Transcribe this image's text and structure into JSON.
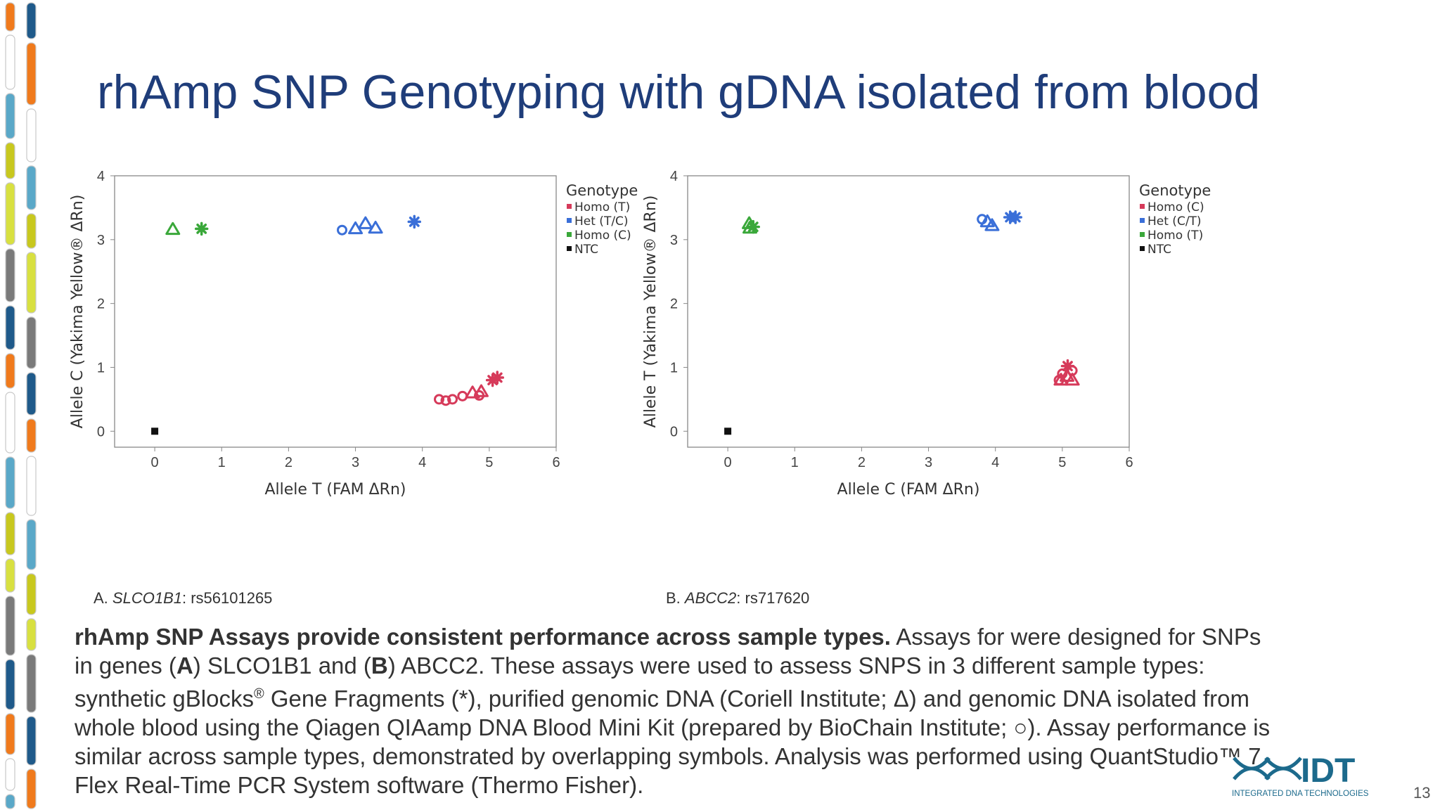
{
  "slide": {
    "title": "rhAmp SNP Genotyping with gDNA isolated from blood",
    "page_number": "13"
  },
  "captions": [
    {
      "letter": "A.",
      "gene": "SLCO1B1",
      "snp": ": rs56101265"
    },
    {
      "letter": "B.",
      "gene": "ABCC2",
      "snp": ": rs717620"
    }
  ],
  "description": {
    "bold": "rhAmp SNP Assays provide consistent performance across sample types.",
    "p1": " Assays for were designed for SNPs in genes (",
    "A": "A",
    "p2": ") SLCO1B1 and (",
    "B": "B",
    "p3": ") ABCC2. These assays were used to assess SNPS in 3 different sample types: synthetic gBlocks",
    "reg": "®",
    "p4": " Gene Fragments (*), purified genomic DNA (Coriell Institute; Δ) and genomic DNA isolated from whole blood using the Qiagen QIAamp DNA Blood Mini Kit (prepared by BioChain Institute; ○). Assay performance is similar across sample types, demonstrated by overlapping symbols. Analysis was performed using QuantStudio™ 7 Flex Real-Time PCR System software (Thermo Fisher)."
  },
  "logo": {
    "text": "IDT",
    "subtext": "INTEGRATED DNA TECHNOLOGIES"
  },
  "colors": {
    "title": "#1f3d7a",
    "red": "#d63a5a",
    "blue": "#3a6fd8",
    "green": "#3aa83a",
    "black": "#111111",
    "logo": "#1c6a8c"
  },
  "chart_data": [
    {
      "type": "scatter",
      "xlabel": "Allele T (FAM ΔRn)",
      "ylabel": "Allele C (Yakima Yellow® ΔRn)",
      "xlim": [
        -0.6,
        6
      ],
      "ylim": [
        -0.25,
        4
      ],
      "xticks": [
        0,
        1,
        2,
        3,
        4,
        5,
        6
      ],
      "yticks": [
        0,
        1,
        2,
        3,
        4
      ],
      "legend_title": "Genotype",
      "legend_position": "top-right",
      "legend": [
        {
          "label": "Homo (T)",
          "color": "#d63a5a"
        },
        {
          "label": "Het (T/C)",
          "color": "#3a6fd8"
        },
        {
          "label": "Homo (C)",
          "color": "#3aa83a"
        },
        {
          "label": "NTC",
          "color": "#111111"
        }
      ],
      "points": [
        {
          "x": 0.27,
          "y": 3.16,
          "shape": "triangle",
          "color": "#3aa83a"
        },
        {
          "x": 0.7,
          "y": 3.17,
          "shape": "star",
          "color": "#3aa83a"
        },
        {
          "x": 2.8,
          "y": 3.15,
          "shape": "circle",
          "color": "#3a6fd8"
        },
        {
          "x": 3.0,
          "y": 3.17,
          "shape": "triangle",
          "color": "#3a6fd8"
        },
        {
          "x": 3.15,
          "y": 3.25,
          "shape": "triangle",
          "color": "#3a6fd8"
        },
        {
          "x": 3.3,
          "y": 3.18,
          "shape": "triangle",
          "color": "#3a6fd8"
        },
        {
          "x": 3.88,
          "y": 3.28,
          "shape": "star",
          "color": "#3a6fd8"
        },
        {
          "x": 4.25,
          "y": 0.5,
          "shape": "circle",
          "color": "#d63a5a"
        },
        {
          "x": 4.35,
          "y": 0.48,
          "shape": "circle",
          "color": "#d63a5a"
        },
        {
          "x": 4.45,
          "y": 0.5,
          "shape": "circle",
          "color": "#d63a5a"
        },
        {
          "x": 4.6,
          "y": 0.55,
          "shape": "circle",
          "color": "#d63a5a"
        },
        {
          "x": 4.75,
          "y": 0.6,
          "shape": "triangle",
          "color": "#d63a5a"
        },
        {
          "x": 4.88,
          "y": 0.62,
          "shape": "triangle",
          "color": "#d63a5a"
        },
        {
          "x": 4.85,
          "y": 0.56,
          "shape": "circle",
          "color": "#d63a5a"
        },
        {
          "x": 5.05,
          "y": 0.8,
          "shape": "star",
          "color": "#d63a5a"
        },
        {
          "x": 5.12,
          "y": 0.84,
          "shape": "star",
          "color": "#d63a5a"
        },
        {
          "x": 0.0,
          "y": 0.0,
          "shape": "square",
          "color": "#111111"
        }
      ]
    },
    {
      "type": "scatter",
      "xlabel": "Allele C (FAM ΔRn)",
      "ylabel": "Allele T (Yakima Yellow® ΔRn)",
      "xlim": [
        -0.6,
        6
      ],
      "ylim": [
        -0.25,
        4
      ],
      "xticks": [
        0,
        1,
        2,
        3,
        4,
        5,
        6
      ],
      "yticks": [
        0,
        1,
        2,
        3,
        4
      ],
      "legend_title": "Genotype",
      "legend_position": "top-right",
      "legend": [
        {
          "label": "Homo (C)",
          "color": "#d63a5a"
        },
        {
          "label": "Het (C/T)",
          "color": "#3a6fd8"
        },
        {
          "label": "Homo (T)",
          "color": "#3aa83a"
        },
        {
          "label": "NTC",
          "color": "#111111"
        }
      ],
      "points": [
        {
          "x": 0.32,
          "y": 3.25,
          "shape": "triangle",
          "color": "#3aa83a"
        },
        {
          "x": 0.38,
          "y": 3.2,
          "shape": "star",
          "color": "#3aa83a"
        },
        {
          "x": 0.33,
          "y": 3.18,
          "shape": "triangle",
          "color": "#3aa83a"
        },
        {
          "x": 3.8,
          "y": 3.32,
          "shape": "circle",
          "color": "#3a6fd8"
        },
        {
          "x": 3.88,
          "y": 3.28,
          "shape": "triangle",
          "color": "#3a6fd8"
        },
        {
          "x": 3.95,
          "y": 3.22,
          "shape": "triangle",
          "color": "#3a6fd8"
        },
        {
          "x": 4.22,
          "y": 3.35,
          "shape": "star",
          "color": "#3a6fd8"
        },
        {
          "x": 4.3,
          "y": 3.35,
          "shape": "star",
          "color": "#3a6fd8"
        },
        {
          "x": 4.95,
          "y": 0.8,
          "shape": "circle",
          "color": "#d63a5a"
        },
        {
          "x": 5.0,
          "y": 0.9,
          "shape": "circle",
          "color": "#d63a5a"
        },
        {
          "x": 5.07,
          "y": 0.86,
          "shape": "triangle",
          "color": "#d63a5a"
        },
        {
          "x": 5.15,
          "y": 0.8,
          "shape": "triangle",
          "color": "#d63a5a"
        },
        {
          "x": 5.15,
          "y": 0.95,
          "shape": "circle",
          "color": "#d63a5a"
        },
        {
          "x": 5.08,
          "y": 1.02,
          "shape": "star",
          "color": "#d63a5a"
        },
        {
          "x": 4.98,
          "y": 0.8,
          "shape": "triangle",
          "color": "#d63a5a"
        },
        {
          "x": 0.0,
          "y": 0.0,
          "shape": "square",
          "color": "#111111"
        }
      ]
    }
  ]
}
